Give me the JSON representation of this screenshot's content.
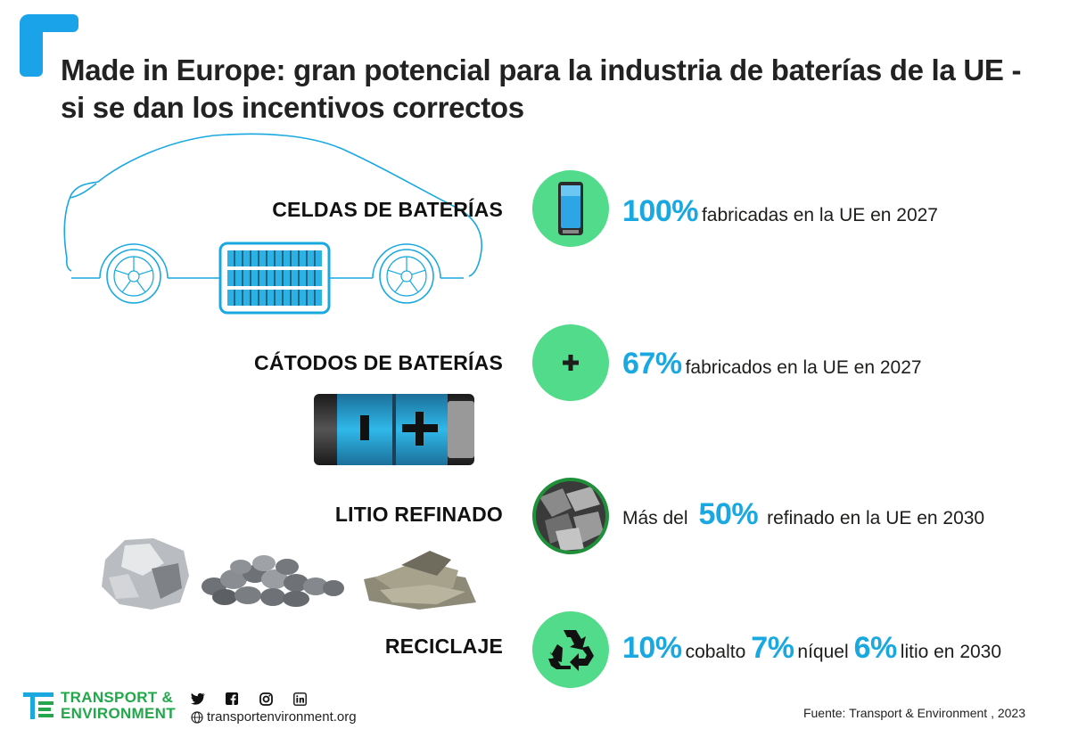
{
  "header": {
    "title": "Made in Europe: gran potencial para la industria de baterías de la UE - si se dan los incentivos correctos"
  },
  "rows": [
    {
      "label": "CELDAS DE BATERÍAS",
      "icon": "phone-battery-icon",
      "pct": "100%",
      "text": "fabricadas en la UE en 2027"
    },
    {
      "label": "CÁTODOS DE BATERÍAS",
      "icon": "plus-icon",
      "pct": "67%",
      "text": "fabricados en la UE en 2027"
    },
    {
      "label": "LITIO REFINADO",
      "icon": "lithium-photo-icon",
      "prefix": "Más del",
      "pct": "50%",
      "text": "refinado en la UE en 2030"
    },
    {
      "label": "RECICLAJE",
      "icon": "recycle-icon",
      "items": [
        {
          "pct": "10%",
          "text": "cobalto"
        },
        {
          "pct": "7%",
          "text": "níquel"
        },
        {
          "pct": "6%",
          "text": "litio en 2030"
        }
      ]
    }
  ],
  "footer": {
    "logo_line1": "TRANSPORT &",
    "logo_line2": "ENVIRONMENT",
    "social_icons": [
      "twitter-icon",
      "facebook-icon",
      "instagram-icon",
      "linkedin-icon"
    ],
    "website": "transportenvironment.org",
    "source": "Fuente: Transport & Environment , 2023"
  },
  "colors": {
    "accent_blue": "#19a8e0",
    "circle_green": "#52db8b",
    "logo_green": "#22a84a",
    "corner_blue": "#1aa3e8"
  }
}
